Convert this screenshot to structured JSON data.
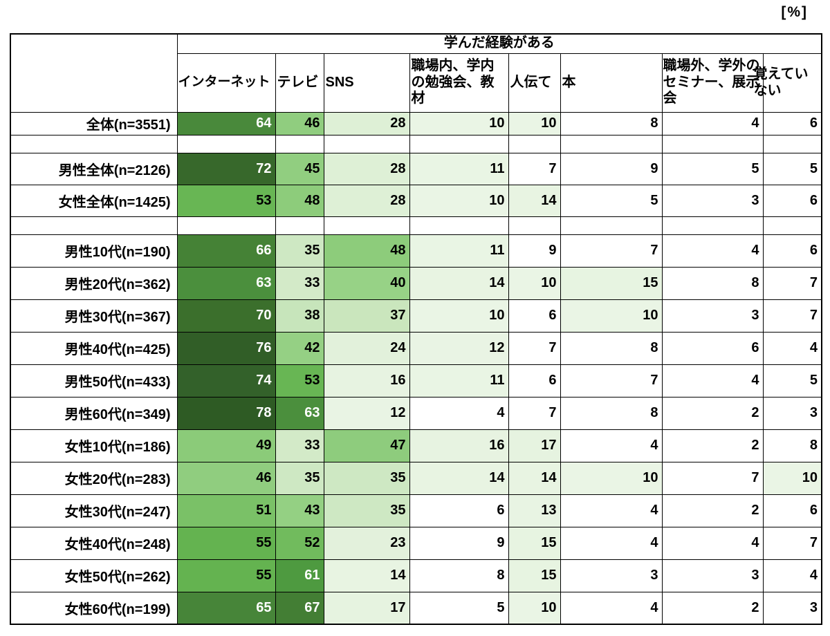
{
  "unit_label": "[%]",
  "chart_data": {
    "type": "heatmap",
    "title": "学んだ経験がある",
    "unit": "%",
    "columns": [
      {
        "id": "internet",
        "label": "インターネット"
      },
      {
        "id": "tv",
        "label": "テレビ"
      },
      {
        "id": "sns",
        "label": "SNS"
      },
      {
        "id": "workplace-school-study",
        "label": "職場内、学内の勉強会、教材"
      },
      {
        "id": "word-of-mouth",
        "label": "人伝て"
      },
      {
        "id": "books",
        "label": "本"
      },
      {
        "id": "external-seminars",
        "label": "職場外、学外のセミナー、展示会"
      },
      {
        "id": "dont-remember",
        "label": "覚えていない"
      }
    ],
    "rows": [
      {
        "label": "全体(n=3551)",
        "values": [
          64,
          46,
          28,
          10,
          10,
          8,
          4,
          6
        ]
      },
      {
        "blank": true,
        "label": "",
        "values": null
      },
      {
        "label": "男性全体(n=2126)",
        "values": [
          72,
          45,
          28,
          11,
          7,
          9,
          5,
          5
        ]
      },
      {
        "label": "女性全体(n=1425)",
        "values": [
          53,
          48,
          28,
          10,
          14,
          5,
          3,
          6
        ]
      },
      {
        "blank": true,
        "label": "",
        "values": null
      },
      {
        "label": "男性10代(n=190)",
        "values": [
          66,
          35,
          48,
          11,
          9,
          7,
          4,
          6
        ]
      },
      {
        "label": "男性20代(n=362)",
        "values": [
          63,
          33,
          40,
          14,
          10,
          15,
          8,
          7
        ]
      },
      {
        "label": "男性30代(n=367)",
        "values": [
          70,
          38,
          37,
          10,
          6,
          10,
          3,
          7
        ]
      },
      {
        "label": "男性40代(n=425)",
        "values": [
          76,
          42,
          24,
          12,
          7,
          8,
          6,
          4
        ]
      },
      {
        "label": "男性50代(n=433)",
        "values": [
          74,
          53,
          16,
          11,
          6,
          7,
          4,
          5
        ]
      },
      {
        "label": "男性60代(n=349)",
        "values": [
          78,
          63,
          12,
          4,
          7,
          8,
          2,
          3
        ]
      },
      {
        "label": "女性10代(n=186)",
        "values": [
          49,
          33,
          47,
          16,
          17,
          4,
          2,
          8
        ]
      },
      {
        "label": "女性20代(n=283)",
        "values": [
          46,
          35,
          35,
          14,
          14,
          10,
          7,
          10
        ]
      },
      {
        "label": "女性30代(n=247)",
        "values": [
          51,
          43,
          35,
          6,
          13,
          4,
          2,
          6
        ]
      },
      {
        "label": "女性40代(n=248)",
        "values": [
          55,
          52,
          23,
          9,
          15,
          4,
          4,
          7
        ]
      },
      {
        "label": "女性50代(n=262)",
        "values": [
          55,
          61,
          14,
          8,
          15,
          3,
          3,
          4
        ]
      },
      {
        "label": "女性60代(n=199)",
        "values": [
          65,
          67,
          17,
          5,
          10,
          4,
          2,
          3
        ]
      }
    ],
    "color_scale": {
      "description": "white below 10, light-to-dark green gradient for higher values",
      "min_color": "#ffffff",
      "max_color": "#2e5b24",
      "white_text_threshold": 60,
      "stops": [
        [
          0,
          "#ffffff"
        ],
        [
          9,
          "#ffffff"
        ],
        [
          10,
          "#eaf5e5"
        ],
        [
          17,
          "#e6f3e0"
        ],
        [
          24,
          "#e2f1db"
        ],
        [
          28,
          "#def0d6"
        ],
        [
          33,
          "#d3eac8"
        ],
        [
          39,
          "#c5e4b8"
        ],
        [
          40,
          "#97d286"
        ],
        [
          46,
          "#90cd7f"
        ],
        [
          49,
          "#8bcb79"
        ],
        [
          53,
          "#68b654"
        ],
        [
          55,
          "#64b350"
        ],
        [
          61,
          "#4e9a40"
        ],
        [
          64,
          "#49893b"
        ],
        [
          67,
          "#437e34"
        ],
        [
          70,
          "#3b6f2c"
        ],
        [
          74,
          "#33612a"
        ],
        [
          78,
          "#2e5b24"
        ]
      ]
    }
  }
}
